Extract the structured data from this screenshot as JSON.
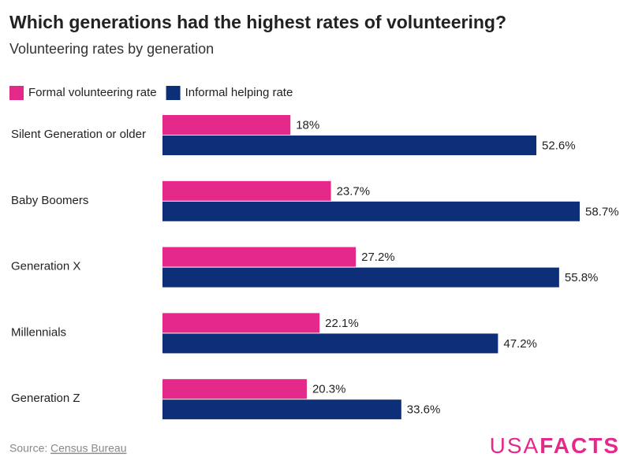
{
  "chart_data": {
    "type": "bar",
    "orientation": "horizontal",
    "title": "Which generations had the highest rates of volunteering?",
    "subtitle": "Volunteering rates by generation",
    "categories": [
      "Silent Generation or older",
      "Baby Boomers",
      "Generation X",
      "Millennials",
      "Generation Z"
    ],
    "series": [
      {
        "name": "Formal volunteering rate",
        "color": "#e5298a",
        "values": [
          18,
          23.7,
          27.2,
          22.1,
          20.3
        ],
        "value_labels": [
          "18%",
          "23.7%",
          "27.2%",
          "22.1%",
          "20.3%"
        ]
      },
      {
        "name": "Informal helping rate",
        "color": "#0d2f78",
        "values": [
          52.6,
          58.7,
          55.8,
          47.2,
          33.6
        ],
        "value_labels": [
          "52.6%",
          "58.7%",
          "55.8%",
          "47.2%",
          "33.6%"
        ]
      }
    ]
  },
  "footer": {
    "source_label": "Source:",
    "source_link": "Census Bureau",
    "logo_light": "USA",
    "logo_bold": "FACTS"
  }
}
